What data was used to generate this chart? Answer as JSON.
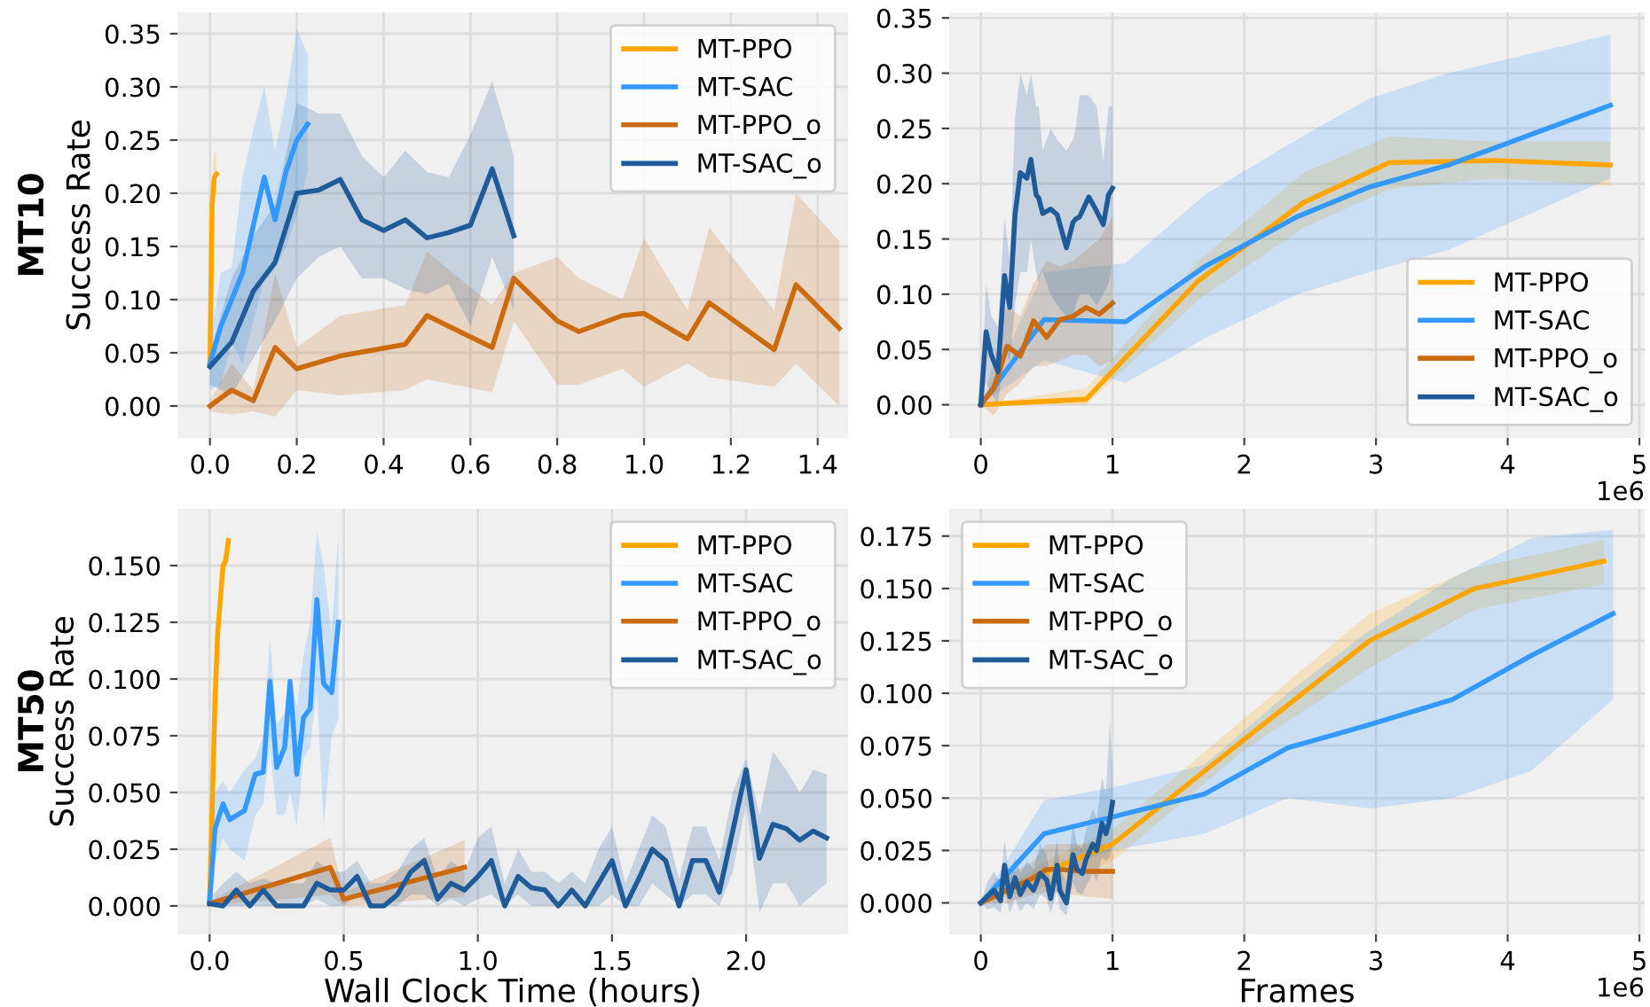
{
  "chart_data": [
    {
      "type": "line",
      "ylabel": "Success Rate",
      "annotations": [
        "MT10"
      ],
      "legend": "upper right",
      "grid": true,
      "xlim": [
        -0.075,
        1.47
      ],
      "ylim": [
        -0.03,
        0.37
      ],
      "xticks": [
        {
          "value": 0,
          "label": "0.0"
        },
        {
          "value": 0.2,
          "label": "0.2"
        },
        {
          "value": 0.4,
          "label": "0.4"
        },
        {
          "value": 0.6,
          "label": "0.6"
        },
        {
          "value": 0.8,
          "label": "0.8"
        },
        {
          "value": 1.0,
          "label": "1.0"
        },
        {
          "value": 1.2,
          "label": "1.2"
        },
        {
          "value": 1.4,
          "label": "1.4"
        }
      ],
      "yticks": [
        {
          "value": 0,
          "label": "0.00"
        },
        {
          "value": 0.05,
          "label": "0.05"
        },
        {
          "value": 0.1,
          "label": "0.10"
        },
        {
          "value": 0.15,
          "label": "0.15"
        },
        {
          "value": 0.2,
          "label": "0.20"
        },
        {
          "value": 0.25,
          "label": "0.25"
        },
        {
          "value": 0.3,
          "label": "0.30"
        },
        {
          "value": 0.35,
          "label": "0.35"
        }
      ],
      "series": [
        {
          "name": "MT-PPO",
          "color": "#ffa500",
          "x": [
            0,
            0.005,
            0.01,
            0.015
          ],
          "values": [
            0.04,
            0.19,
            0.215,
            0.218
          ],
          "lower": [
            0.03,
            0.17,
            0.2,
            0.2
          ],
          "upper": [
            0.05,
            0.21,
            0.24,
            0.235
          ]
        },
        {
          "name": "MT-SAC",
          "color": "#3399ff",
          "x": [
            0,
            0.025,
            0.05,
            0.075,
            0.1,
            0.125,
            0.15,
            0.175,
            0.2,
            0.225
          ],
          "values": [
            0.04,
            0.075,
            0.1,
            0.125,
            0.17,
            0.215,
            0.175,
            0.22,
            0.25,
            0.265
          ],
          "lower": [
            0.015,
            0.02,
            0.06,
            0.04,
            0.08,
            0.12,
            0.13,
            0.15,
            0.18,
            0.22
          ],
          "upper": [
            0.06,
            0.125,
            0.13,
            0.215,
            0.26,
            0.3,
            0.24,
            0.29,
            0.355,
            0.33
          ]
        },
        {
          "name": "MT-PPO_o",
          "color": "#cc6a0e",
          "x": [
            0,
            0.05,
            0.1,
            0.15,
            0.2,
            0.3,
            0.45,
            0.5,
            0.65,
            0.7,
            0.8,
            0.85,
            0.95,
            1.0,
            1.1,
            1.15,
            1.3,
            1.35,
            1.45
          ],
          "values": [
            0,
            0.015,
            0.005,
            0.055,
            0.035,
            0.047,
            0.058,
            0.085,
            0.055,
            0.12,
            0.08,
            0.07,
            0.085,
            0.087,
            0.063,
            0.097,
            0.053,
            0.114,
            0.073
          ],
          "lower": [
            -0.005,
            -0.008,
            -0.005,
            -0.01,
            0.015,
            0.01,
            0.015,
            0.025,
            0.013,
            0.08,
            0.02,
            0.02,
            0.035,
            0.018,
            0.04,
            0.027,
            0.018,
            0.04,
            0.0
          ],
          "upper": [
            0.005,
            0.04,
            0.015,
            0.125,
            0.055,
            0.085,
            0.095,
            0.145,
            0.095,
            0.125,
            0.14,
            0.12,
            0.1,
            0.158,
            0.09,
            0.168,
            0.09,
            0.2,
            0.155
          ]
        },
        {
          "name": "MT-SAC_o",
          "color": "#1f5b99",
          "x": [
            0,
            0.05,
            0.1,
            0.15,
            0.2,
            0.25,
            0.3,
            0.35,
            0.4,
            0.45,
            0.5,
            0.55,
            0.6,
            0.65,
            0.7
          ],
          "values": [
            0.037,
            0.06,
            0.108,
            0.135,
            0.2,
            0.203,
            0.213,
            0.175,
            0.165,
            0.175,
            0.158,
            0.163,
            0.17,
            0.223,
            0.16
          ],
          "lower": [
            0.02,
            0.01,
            0.045,
            0.08,
            0.12,
            0.14,
            0.15,
            0.12,
            0.12,
            0.11,
            0.105,
            0.115,
            0.075,
            0.14,
            0.09
          ],
          "upper": [
            0.05,
            0.12,
            0.16,
            0.19,
            0.285,
            0.275,
            0.275,
            0.235,
            0.215,
            0.24,
            0.22,
            0.215,
            0.255,
            0.305,
            0.235
          ]
        }
      ]
    },
    {
      "type": "line",
      "annotations": [
        "1e6"
      ],
      "legend": "lower right",
      "grid": true,
      "xlim": [
        -0.24,
        5.04
      ],
      "ylim": [
        -0.03,
        0.355
      ],
      "xticks": [
        0,
        1,
        2,
        3,
        4,
        5
      ],
      "yticks": [
        {
          "value": 0,
          "label": "0.00"
        },
        {
          "value": 0.05,
          "label": "0.05"
        },
        {
          "value": 0.1,
          "label": "0.10"
        },
        {
          "value": 0.15,
          "label": "0.15"
        },
        {
          "value": 0.2,
          "label": "0.20"
        },
        {
          "value": 0.25,
          "label": "0.25"
        },
        {
          "value": 0.3,
          "label": "0.30"
        },
        {
          "value": 0.35,
          "label": "0.35"
        }
      ],
      "series": [
        {
          "name": "MT-PPO",
          "color": "#ffa500",
          "x": [
            0,
            0.8,
            1.65,
            2.45,
            3.1,
            3.9,
            4.78
          ],
          "values": [
            0,
            0.005,
            0.112,
            0.183,
            0.219,
            0.221,
            0.217
          ],
          "lower": [
            0,
            0,
            0.095,
            0.16,
            0.195,
            0.205,
            0.198
          ],
          "upper": [
            0,
            0.015,
            0.13,
            0.21,
            0.243,
            0.238,
            0.238
          ]
        },
        {
          "name": "MT-SAC",
          "color": "#3399ff",
          "x": [
            0,
            0.48,
            1.1,
            1.7,
            2.4,
            2.95,
            3.55,
            4.78
          ],
          "values": [
            0,
            0.077,
            0.075,
            0.125,
            0.17,
            0.197,
            0.217,
            0.271
          ],
          "lower": [
            0,
            0.04,
            0.02,
            0.06,
            0.1,
            0.12,
            0.14,
            0.205
          ],
          "upper": [
            0,
            0.12,
            0.128,
            0.19,
            0.24,
            0.277,
            0.3,
            0.335
          ]
        },
        {
          "name": "MT-PPO_o",
          "color": "#cc6a0e",
          "x": [
            0,
            0.1,
            0.2,
            0.3,
            0.4,
            0.5,
            0.6,
            0.7,
            0.8,
            0.9,
            1.0
          ],
          "values": [
            0,
            0.015,
            0.053,
            0.044,
            0.076,
            0.061,
            0.077,
            0.08,
            0.088,
            0.082,
            0.092
          ],
          "lower": [
            0,
            -0.01,
            0.01,
            0.02,
            0.035,
            0.035,
            0.04,
            0.045,
            0.045,
            0.035,
            0.04
          ],
          "upper": [
            0,
            0.04,
            0.09,
            0.08,
            0.11,
            0.13,
            0.125,
            0.13,
            0.14,
            0.15,
            0.17
          ]
        },
        {
          "name": "MT-SAC_o",
          "color": "#1f5b99",
          "x": [
            0,
            0.04,
            0.08,
            0.13,
            0.18,
            0.22,
            0.26,
            0.3,
            0.35,
            0.38,
            0.42,
            0.44,
            0.47,
            0.53,
            0.58,
            0.65,
            0.7,
            0.72,
            0.75,
            0.82,
            0.88,
            0.93,
            0.97,
            1.0
          ],
          "values": [
            0,
            0.066,
            0.045,
            0.03,
            0.117,
            0.088,
            0.172,
            0.21,
            0.205,
            0.222,
            0.19,
            0.187,
            0.173,
            0.177,
            0.172,
            0.142,
            0.165,
            0.168,
            0.17,
            0.188,
            0.175,
            0.163,
            0.19,
            0.196
          ],
          "lower": [
            0,
            0.02,
            0.01,
            0.0,
            0.05,
            0.04,
            0.09,
            0.12,
            0.12,
            0.15,
            0.12,
            0.11,
            0.12,
            0.1,
            0.09,
            0.08,
            0.08,
            0.09,
            0.1,
            0.1,
            0.09,
            0.1,
            0.11,
            0.13
          ],
          "upper": [
            0,
            0.11,
            0.08,
            0.07,
            0.17,
            0.13,
            0.26,
            0.3,
            0.28,
            0.3,
            0.27,
            0.27,
            0.23,
            0.25,
            0.24,
            0.23,
            0.24,
            0.25,
            0.28,
            0.28,
            0.27,
            0.22,
            0.27,
            0.27
          ]
        }
      ]
    },
    {
      "type": "line",
      "ylabel": "Success Rate",
      "xlabel": "Wall Clock Time (hours)",
      "annotations": [
        "MT50"
      ],
      "legend": "upper right",
      "grid": true,
      "xlim": [
        -0.12,
        2.38
      ],
      "ylim": [
        -0.0125,
        0.175
      ],
      "xticks": [
        {
          "value": 0,
          "label": "0.0"
        },
        {
          "value": 0.5,
          "label": "0.5"
        },
        {
          "value": 1.0,
          "label": "1.0"
        },
        {
          "value": 1.5,
          "label": "1.5"
        },
        {
          "value": 2.0,
          "label": "2.0"
        }
      ],
      "yticks": [
        {
          "value": 0,
          "label": "0.000"
        },
        {
          "value": 0.025,
          "label": "0.025"
        },
        {
          "value": 0.05,
          "label": "0.050"
        },
        {
          "value": 0.075,
          "label": "0.075"
        },
        {
          "value": 0.1,
          "label": "0.100"
        },
        {
          "value": 0.125,
          "label": "0.125"
        },
        {
          "value": 0.15,
          "label": "0.150"
        }
      ],
      "series": [
        {
          "name": "MT-PPO",
          "color": "#ffa500",
          "x": [
            0,
            0.01,
            0.02,
            0.03,
            0.04,
            0.05,
            0.06,
            0.07
          ],
          "values": [
            0.002,
            0.045,
            0.09,
            0.12,
            0.135,
            0.15,
            0.152,
            0.161
          ],
          "lower": [
            0,
            0.04,
            0.085,
            0.115,
            0.13,
            0.145,
            0.147,
            0.156
          ],
          "upper": [
            0.004,
            0.05,
            0.095,
            0.125,
            0.14,
            0.155,
            0.157,
            0.166
          ]
        },
        {
          "name": "MT-SAC",
          "color": "#3399ff",
          "x": [
            0,
            0.02,
            0.05,
            0.075,
            0.13,
            0.17,
            0.2,
            0.225,
            0.25,
            0.28,
            0.3,
            0.325,
            0.35,
            0.375,
            0.4,
            0.425,
            0.455,
            0.48
          ],
          "values": [
            0.002,
            0.034,
            0.045,
            0.038,
            0.042,
            0.058,
            0.059,
            0.099,
            0.061,
            0.07,
            0.099,
            0.058,
            0.083,
            0.087,
            0.135,
            0.098,
            0.094,
            0.125
          ],
          "lower": [
            0,
            0.02,
            0.03,
            0.025,
            0.02,
            0.04,
            0.045,
            0.07,
            0.04,
            0.04,
            0.05,
            0.035,
            0.065,
            0.07,
            0.095,
            0.035,
            0.075,
            0.082
          ],
          "upper": [
            0.004,
            0.05,
            0.055,
            0.05,
            0.06,
            0.065,
            0.075,
            0.118,
            0.08,
            0.085,
            0.1,
            0.088,
            0.11,
            0.125,
            0.165,
            0.15,
            0.12,
            0.165
          ]
        },
        {
          "name": "MT-PPO_o",
          "color": "#cc6a0e",
          "x": [
            0,
            0.45,
            0.5,
            0.95
          ],
          "values": [
            0.001,
            0.017,
            0.003,
            0.017
          ],
          "lower": [
            0,
            0.005,
            0.0,
            0.004
          ],
          "upper": [
            0.002,
            0.03,
            0.006,
            0.029
          ]
        },
        {
          "name": "MT-SAC_o",
          "color": "#1f5b99",
          "x": [
            0,
            0.05,
            0.1,
            0.15,
            0.2,
            0.25,
            0.3,
            0.35,
            0.4,
            0.45,
            0.5,
            0.55,
            0.6,
            0.65,
            0.7,
            0.75,
            0.8,
            0.85,
            0.9,
            0.95,
            1.0,
            1.05,
            1.1,
            1.15,
            1.2,
            1.25,
            1.3,
            1.35,
            1.4,
            1.45,
            1.5,
            1.55,
            1.6,
            1.65,
            1.7,
            1.75,
            1.8,
            1.85,
            1.9,
            1.95,
            2.0,
            2.05,
            2.1,
            2.15,
            2.2,
            2.25,
            2.3
          ],
          "values": [
            0.001,
            0,
            0.007,
            0,
            0.007,
            0,
            0,
            0,
            0.01,
            0.007,
            0.007,
            0.013,
            0,
            0,
            0.005,
            0.015,
            0.02,
            0.003,
            0.01,
            0.007,
            0.013,
            0.02,
            0,
            0.013,
            0.008,
            0.007,
            0,
            0.007,
            0,
            0.01,
            0.02,
            0,
            0.012,
            0.025,
            0.02,
            0,
            0.02,
            0.02,
            0.006,
            0.033,
            0.06,
            0.021,
            0.036,
            0.034,
            0.029,
            0.033,
            0.03
          ],
          "lower": [
            0,
            0,
            0,
            0,
            0,
            0,
            0,
            0,
            0.003,
            0,
            0,
            0.005,
            0,
            0,
            0,
            0.005,
            0.005,
            0,
            0.003,
            0,
            0.003,
            0.005,
            0,
            0.005,
            0,
            0,
            0,
            0,
            0,
            0,
            0.005,
            0,
            0,
            0.01,
            0.005,
            0,
            0.005,
            0.005,
            0,
            0.015,
            0.045,
            -0.003,
            0.01,
            0.01,
            0,
            0.005,
            0.01
          ],
          "upper": [
            0.003,
            0.01,
            0.015,
            0.01,
            0.012,
            0.01,
            0.01,
            0.01,
            0.02,
            0.015,
            0.015,
            0.02,
            0.01,
            0.01,
            0.015,
            0.025,
            0.03,
            0.012,
            0.02,
            0.015,
            0.03,
            0.035,
            0.01,
            0.025,
            0.015,
            0.015,
            0.01,
            0.015,
            0.01,
            0.025,
            0.035,
            0.01,
            0.025,
            0.04,
            0.035,
            0.012,
            0.035,
            0.035,
            0.02,
            0.05,
            0.065,
            0.04,
            0.068,
            0.06,
            0.05,
            0.06,
            0.058
          ]
        }
      ]
    },
    {
      "type": "line",
      "xlabel": "Frames",
      "annotations": [
        "1e6"
      ],
      "legend": "upper left",
      "grid": true,
      "xlim": [
        -0.24,
        5.04
      ],
      "ylim": [
        -0.015,
        0.188
      ],
      "xticks": [
        0,
        1,
        2,
        3,
        4,
        5
      ],
      "yticks": [
        {
          "value": 0,
          "label": "0.000"
        },
        {
          "value": 0.025,
          "label": "0.025"
        },
        {
          "value": 0.05,
          "label": "0.050"
        },
        {
          "value": 0.075,
          "label": "0.075"
        },
        {
          "value": 0.1,
          "label": "0.100"
        },
        {
          "value": 0.125,
          "label": "0.125"
        },
        {
          "value": 0.15,
          "label": "0.150"
        },
        {
          "value": 0.175,
          "label": "0.175"
        }
      ],
      "series": [
        {
          "name": "MT-PPO",
          "color": "#ffa500",
          "x": [
            0,
            0.5,
            1.0,
            2.0,
            2.95,
            3.75,
            4.73
          ],
          "values": [
            0,
            0.015,
            0.028,
            0.078,
            0.125,
            0.15,
            0.163
          ],
          "lower": [
            0,
            0.008,
            0.02,
            0.073,
            0.112,
            0.14,
            0.152
          ],
          "upper": [
            0,
            0.02,
            0.035,
            0.088,
            0.138,
            0.16,
            0.173
          ]
        },
        {
          "name": "MT-SAC",
          "color": "#3399ff",
          "x": [
            0,
            0.48,
            1.0,
            1.7,
            2.33,
            2.95,
            3.58,
            4.18,
            4.8
          ],
          "values": [
            0,
            0.033,
            0.041,
            0.052,
            0.074,
            0.085,
            0.097,
            0.118,
            0.138
          ],
          "lower": [
            0,
            0.015,
            0.025,
            0.033,
            0.05,
            0.045,
            0.05,
            0.063,
            0.097
          ],
          "upper": [
            0,
            0.049,
            0.055,
            0.066,
            0.1,
            0.13,
            0.155,
            0.174,
            0.178
          ]
        },
        {
          "name": "MT-PPO_o",
          "color": "#cc6a0e",
          "x": [
            0,
            0.2,
            0.4,
            0.5,
            0.6,
            0.8,
            1.0
          ],
          "values": [
            0,
            0.006,
            0.012,
            0.016,
            0.016,
            0.015,
            0.015
          ],
          "lower": [
            0,
            0,
            0.004,
            0.005,
            0.005,
            0.003,
            0.002
          ],
          "upper": [
            0,
            0.013,
            0.02,
            0.028,
            0.028,
            0.028,
            0.028
          ]
        },
        {
          "name": "MT-SAC_o",
          "color": "#1f5b99",
          "x": [
            0,
            0.05,
            0.1,
            0.15,
            0.18,
            0.22,
            0.26,
            0.3,
            0.35,
            0.4,
            0.45,
            0.5,
            0.53,
            0.58,
            0.6,
            0.65,
            0.7,
            0.73,
            0.77,
            0.8,
            0.85,
            0.88,
            0.92,
            0.95,
            0.98,
            1.0
          ],
          "values": [
            0,
            0.003,
            0.006,
            0.001,
            0.018,
            0.003,
            0.012,
            0.004,
            0.01,
            0.006,
            0.014,
            0.011,
            0.002,
            0.018,
            0.006,
            0.0,
            0.023,
            0.016,
            0.014,
            0.021,
            0.028,
            0.025,
            0.038,
            0.033,
            0.04,
            0.048
          ],
          "lower": [
            0,
            -0.003,
            -0.002,
            -0.005,
            0.006,
            -0.005,
            0.002,
            -0.004,
            0.0,
            -0.003,
            0.004,
            0.002,
            -0.005,
            0.006,
            -0.003,
            -0.006,
            0.01,
            0.005,
            0.004,
            0.008,
            0.014,
            0.01,
            0.022,
            0.02,
            0.022,
            0.03
          ],
          "upper": [
            0,
            0.01,
            0.015,
            0.009,
            0.03,
            0.012,
            0.022,
            0.014,
            0.02,
            0.016,
            0.028,
            0.023,
            0.01,
            0.03,
            0.016,
            0.01,
            0.038,
            0.028,
            0.026,
            0.035,
            0.045,
            0.04,
            0.06,
            0.052,
            0.087,
            0.065
          ]
        }
      ]
    }
  ]
}
